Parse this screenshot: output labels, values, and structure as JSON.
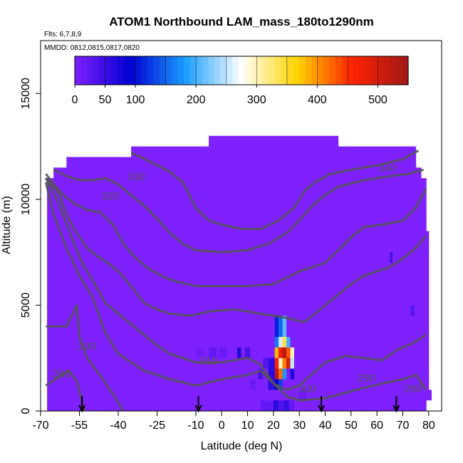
{
  "chart_data": {
    "type": "heatmap",
    "title": "ATOM1 Northbound LAM_mass_180to1290nm",
    "annotations": [
      "Flts: 6,7,8,9",
      "MMDD: 0812,0815,0817,0820"
    ],
    "xlabel": "Latitude (deg N)",
    "ylabel": "Altitude (m)",
    "xlim": [
      -70,
      85
    ],
    "ylim": [
      0,
      17500
    ],
    "x_ticks": [
      -70,
      -55,
      -40,
      -25,
      -10,
      0,
      10,
      20,
      30,
      40,
      50,
      60,
      70,
      80
    ],
    "x_tick_labels": [
      "-70",
      "-55",
      "-40",
      "-25",
      "-10",
      "0",
      "10",
      "20",
      "30",
      "40",
      "50",
      "60",
      "70",
      "80"
    ],
    "y_ticks": [
      0,
      5000,
      10000,
      15000
    ],
    "y_tick_labels": [
      "0",
      "5000",
      "10000",
      "15000"
    ],
    "colorbar": {
      "range": [
        0,
        550
      ],
      "ticks": [
        0,
        50,
        100,
        200,
        300,
        400,
        500
      ],
      "tick_labels": [
        "0",
        "50",
        "100",
        "200",
        "300",
        "400",
        "500"
      ],
      "stops": [
        "#7f20ff",
        "#0000d0",
        "#1b9fff",
        "#ffffff",
        "#ffd400",
        "#ff2200",
        "#a01818"
      ]
    },
    "coverage": [
      {
        "lat": [
          -67.5,
          -65
        ],
        "alt": [
          0,
          11000
        ]
      },
      {
        "lat": [
          -65,
          -60
        ],
        "alt": [
          0,
          11500
        ]
      },
      {
        "lat": [
          -60,
          -35
        ],
        "alt": [
          0,
          12000
        ]
      },
      {
        "lat": [
          -35,
          -5
        ],
        "alt": [
          0,
          12500
        ]
      },
      {
        "lat": [
          -5,
          45
        ],
        "alt": [
          0,
          13000
        ]
      },
      {
        "lat": [
          45,
          75
        ],
        "alt": [
          0,
          12500
        ]
      },
      {
        "lat": [
          75,
          77
        ],
        "alt": [
          0,
          11500
        ]
      },
      {
        "lat": [
          77,
          79
        ],
        "alt": [
          0,
          11000
        ]
      },
      {
        "lat": [
          79,
          80
        ],
        "alt": [
          500,
          8500
        ]
      },
      {
        "lat": [
          80,
          81
        ],
        "alt": [
          500,
          1000
        ]
      }
    ],
    "cells": [
      {
        "lat": [
          20.5,
          22
        ],
        "alt": [
          3500,
          4500
        ],
        "value": 110
      },
      {
        "lat": [
          22,
          23.5
        ],
        "alt": [
          3500,
          4500
        ],
        "value": 150
      },
      {
        "lat": [
          23.5,
          25
        ],
        "alt": [
          3500,
          4500
        ],
        "value": 210
      },
      {
        "lat": [
          20.5,
          22
        ],
        "alt": [
          3000,
          3500
        ],
        "value": 160
      },
      {
        "lat": [
          22,
          23.5
        ],
        "alt": [
          3000,
          3500
        ],
        "value": 260
      },
      {
        "lat": [
          23.5,
          25
        ],
        "alt": [
          3000,
          3500
        ],
        "value": 340
      },
      {
        "lat": [
          25,
          26.5
        ],
        "alt": [
          3000,
          3500
        ],
        "value": 200
      },
      {
        "lat": [
          20.5,
          22
        ],
        "alt": [
          2500,
          3000
        ],
        "value": 380
      },
      {
        "lat": [
          22,
          23.5
        ],
        "alt": [
          2500,
          3000
        ],
        "value": 470
      },
      {
        "lat": [
          23.5,
          25
        ],
        "alt": [
          2500,
          3000
        ],
        "value": 520
      },
      {
        "lat": [
          25,
          26.5
        ],
        "alt": [
          2500,
          3000
        ],
        "value": 430
      },
      {
        "lat": [
          26.5,
          28
        ],
        "alt": [
          2500,
          3000
        ],
        "value": 300
      },
      {
        "lat": [
          20.5,
          22
        ],
        "alt": [
          2000,
          2500
        ],
        "value": 460
      },
      {
        "lat": [
          22,
          23.5
        ],
        "alt": [
          2000,
          2500
        ],
        "value": 300
      },
      {
        "lat": [
          23.5,
          25
        ],
        "alt": [
          2000,
          2500
        ],
        "value": 410
      },
      {
        "lat": [
          25,
          26.5
        ],
        "alt": [
          2000,
          2500
        ],
        "value": 500
      },
      {
        "lat": [
          26.5,
          28
        ],
        "alt": [
          2000,
          2500
        ],
        "value": 250
      },
      {
        "lat": [
          20.5,
          22
        ],
        "alt": [
          1500,
          2000
        ],
        "value": 520
      },
      {
        "lat": [
          22,
          23.5
        ],
        "alt": [
          1500,
          2000
        ],
        "value": 420
      },
      {
        "lat": [
          23.5,
          25
        ],
        "alt": [
          1500,
          2000
        ],
        "value": 180
      },
      {
        "lat": [
          20.5,
          22
        ],
        "alt": [
          1000,
          1500
        ],
        "value": 90
      },
      {
        "lat": [
          22,
          23.5
        ],
        "alt": [
          1000,
          1500
        ],
        "value": 130
      },
      {
        "lat": [
          18,
          20.5
        ],
        "alt": [
          1000,
          2500
        ],
        "value": 60
      },
      {
        "lat": [
          26.5,
          28
        ],
        "alt": [
          1500,
          2000
        ],
        "value": 70
      },
      {
        "lat": [
          14,
          16
        ],
        "alt": [
          1500,
          2000
        ],
        "value": 40
      },
      {
        "lat": [
          16,
          18
        ],
        "alt": [
          2000,
          2500
        ],
        "value": 30
      },
      {
        "lat": [
          9,
          11
        ],
        "alt": [
          2500,
          3000
        ],
        "value": 40
      },
      {
        "lat": [
          6,
          7.5
        ],
        "alt": [
          2500,
          3000
        ],
        "value": 70
      },
      {
        "lat": [
          -1,
          2
        ],
        "alt": [
          2500,
          3000
        ],
        "value": 15
      },
      {
        "lat": [
          -5,
          -2
        ],
        "alt": [
          2500,
          3000
        ],
        "value": 20
      },
      {
        "lat": [
          -10,
          -7
        ],
        "alt": [
          2500,
          3000
        ],
        "value": 10
      },
      {
        "lat": [
          11,
          13
        ],
        "alt": [
          1000,
          1500
        ],
        "value": 15
      },
      {
        "lat": [
          15,
          20
        ],
        "alt": [
          0,
          500
        ],
        "value": 20
      },
      {
        "lat": [
          20,
          22
        ],
        "alt": [
          0,
          500
        ],
        "value": 60
      },
      {
        "lat": [
          22,
          24
        ],
        "alt": [
          0,
          500
        ],
        "value": 35
      },
      {
        "lat": [
          24,
          26
        ],
        "alt": [
          0,
          500
        ],
        "value": 55
      },
      {
        "lat": [
          26,
          28
        ],
        "alt": [
          0,
          500
        ],
        "value": 20
      },
      {
        "lat": [
          30,
          33
        ],
        "alt": [
          500,
          1000
        ],
        "value": 15
      },
      {
        "lat": [
          65,
          66
        ],
        "alt": [
          7000,
          7500
        ],
        "value": 45
      },
      {
        "lat": [
          73,
          74.5
        ],
        "alt": [
          4500,
          5000
        ],
        "value": 30
      }
    ],
    "contours": [
      {
        "level": 280,
        "points": [
          [
            -68,
            4000
          ],
          [
            -60,
            4000
          ],
          [
            -56,
            5000
          ],
          [
            -55,
            3500
          ],
          [
            -52,
            2500
          ],
          [
            -47,
            1700
          ],
          [
            -42,
            800
          ],
          [
            -38,
            0
          ]
        ]
      },
      {
        "level": 280,
        "points": [
          [
            -68,
            1200
          ],
          [
            -62,
            1700
          ],
          [
            -59,
            1900
          ],
          [
            -56,
            1400
          ],
          [
            -53,
            0
          ]
        ]
      },
      {
        "level": 290,
        "points": [
          [
            -68,
            10800
          ],
          [
            -65,
            9300
          ],
          [
            -60,
            7700
          ],
          [
            -55,
            6400
          ],
          [
            -50,
            5400
          ],
          [
            -45,
            3700
          ],
          [
            -40,
            2700
          ],
          [
            -30,
            1900
          ],
          [
            -20,
            1500
          ],
          [
            -10,
            1200
          ],
          [
            0,
            1500
          ],
          [
            10,
            1700
          ],
          [
            15,
            1900
          ],
          [
            20,
            1300
          ],
          [
            25,
            700
          ],
          [
            30,
            500
          ],
          [
            40,
            600
          ],
          [
            55,
            1100
          ],
          [
            62,
            1300
          ],
          [
            70,
            1500
          ],
          [
            75,
            1700
          ],
          [
            79,
            1000
          ]
        ]
      },
      {
        "level": 300,
        "points": [
          [
            -68,
            11000
          ],
          [
            -63,
            9800
          ],
          [
            -58,
            8200
          ],
          [
            -54,
            7000
          ],
          [
            -50,
            6200
          ],
          [
            -45,
            5100
          ],
          [
            -40,
            4600
          ],
          [
            -35,
            4100
          ],
          [
            -30,
            3600
          ],
          [
            -25,
            3100
          ],
          [
            -20,
            2700
          ],
          [
            -15,
            2500
          ],
          [
            -10,
            2300
          ],
          [
            0,
            2300
          ],
          [
            10,
            2500
          ],
          [
            15,
            2200
          ],
          [
            20,
            1300
          ],
          [
            25,
            1000
          ],
          [
            30,
            1200
          ],
          [
            40,
            2300
          ],
          [
            48,
            2600
          ],
          [
            55,
            2500
          ],
          [
            62,
            2400
          ],
          [
            68,
            2900
          ],
          [
            74,
            3200
          ],
          [
            79,
            3600
          ]
        ]
      },
      {
        "level": 310,
        "points": [
          [
            -68,
            11000
          ],
          [
            -63,
            10300
          ],
          [
            -60,
            9300
          ],
          [
            -56,
            8400
          ],
          [
            -52,
            7700
          ],
          [
            -48,
            7300
          ],
          [
            -44,
            7000
          ],
          [
            -40,
            6600
          ],
          [
            -35,
            5900
          ],
          [
            -30,
            5100
          ],
          [
            -25,
            4800
          ],
          [
            -20,
            4600
          ],
          [
            -12,
            4500
          ],
          [
            -5,
            4700
          ],
          [
            5,
            4800
          ],
          [
            15,
            4600
          ],
          [
            25,
            4400
          ],
          [
            32,
            4200
          ],
          [
            38,
            4800
          ],
          [
            45,
            5500
          ],
          [
            50,
            6000
          ],
          [
            55,
            6400
          ],
          [
            60,
            6600
          ],
          [
            65,
            6800
          ],
          [
            70,
            7200
          ],
          [
            75,
            7700
          ],
          [
            79,
            8300
          ]
        ]
      },
      {
        "level": 320,
        "points": [
          [
            -68,
            11200
          ],
          [
            -62,
            10300
          ],
          [
            -57,
            9800
          ],
          [
            -52,
            9500
          ],
          [
            -47,
            9400
          ],
          [
            -42,
            8800
          ],
          [
            -38,
            7900
          ],
          [
            -33,
            7200
          ],
          [
            -28,
            6700
          ],
          [
            -22,
            6300
          ],
          [
            -17,
            6100
          ],
          [
            -10,
            5900
          ],
          [
            0,
            5900
          ],
          [
            10,
            5900
          ],
          [
            20,
            6000
          ],
          [
            30,
            6600
          ],
          [
            35,
            6800
          ],
          [
            40,
            7000
          ],
          [
            45,
            7600
          ],
          [
            50,
            8200
          ],
          [
            55,
            8700
          ],
          [
            62,
            8800
          ],
          [
            70,
            9000
          ],
          [
            75,
            9600
          ],
          [
            79,
            10500
          ]
        ]
      },
      {
        "level": 330,
        "points": [
          [
            -65,
            11400
          ],
          [
            -60,
            11100
          ],
          [
            -55,
            10900
          ],
          [
            -50,
            10900
          ],
          [
            -45,
            11000
          ],
          [
            -40,
            10700
          ],
          [
            -35,
            10200
          ],
          [
            -30,
            9700
          ],
          [
            -25,
            9100
          ],
          [
            -20,
            8400
          ],
          [
            -15,
            7900
          ],
          [
            -10,
            7600
          ],
          [
            0,
            7500
          ],
          [
            10,
            7600
          ],
          [
            18,
            7900
          ],
          [
            25,
            8400
          ],
          [
            30,
            9000
          ],
          [
            35,
            9700
          ],
          [
            40,
            10200
          ],
          [
            45,
            10600
          ],
          [
            55,
            10900
          ],
          [
            65,
            11100
          ],
          [
            72,
            11200
          ],
          [
            78,
            11400
          ]
        ]
      },
      {
        "level": 340,
        "points": [
          [
            -35,
            12200
          ],
          [
            -28,
            11800
          ],
          [
            -20,
            11300
          ],
          [
            -15,
            10800
          ],
          [
            -10,
            9600
          ],
          [
            -5,
            9000
          ],
          [
            0,
            8800
          ],
          [
            8,
            8600
          ],
          [
            15,
            8600
          ],
          [
            22,
            9000
          ],
          [
            28,
            9600
          ],
          [
            32,
            10400
          ],
          [
            36,
            10800
          ],
          [
            42,
            11200
          ],
          [
            50,
            11400
          ],
          [
            60,
            11600
          ],
          [
            70,
            11900
          ],
          [
            76,
            12300
          ]
        ]
      }
    ],
    "contour_labels": [
      {
        "text": "330",
        "lat": -33,
        "alt": 10900
      },
      {
        "text": "320",
        "lat": -43,
        "alt": 10000
      },
      {
        "text": "340",
        "lat": 64,
        "alt": 11300
      },
      {
        "text": "310",
        "lat": -5,
        "alt": 2200
      },
      {
        "text": "300",
        "lat": 33,
        "alt": 900
      },
      {
        "text": "290",
        "lat": -52,
        "alt": 2900
      },
      {
        "text": "280",
        "lat": -62,
        "alt": 1600
      },
      {
        "text": "290",
        "lat": 56,
        "alt": 1400
      },
      {
        "text": "280",
        "lat": 74,
        "alt": 900
      }
    ],
    "markers": {
      "type": "down-arrow",
      "lat": [
        -54,
        -9,
        38.5,
        67.5
      ]
    },
    "grid": false,
    "legend": "colorbar-top-inside"
  }
}
